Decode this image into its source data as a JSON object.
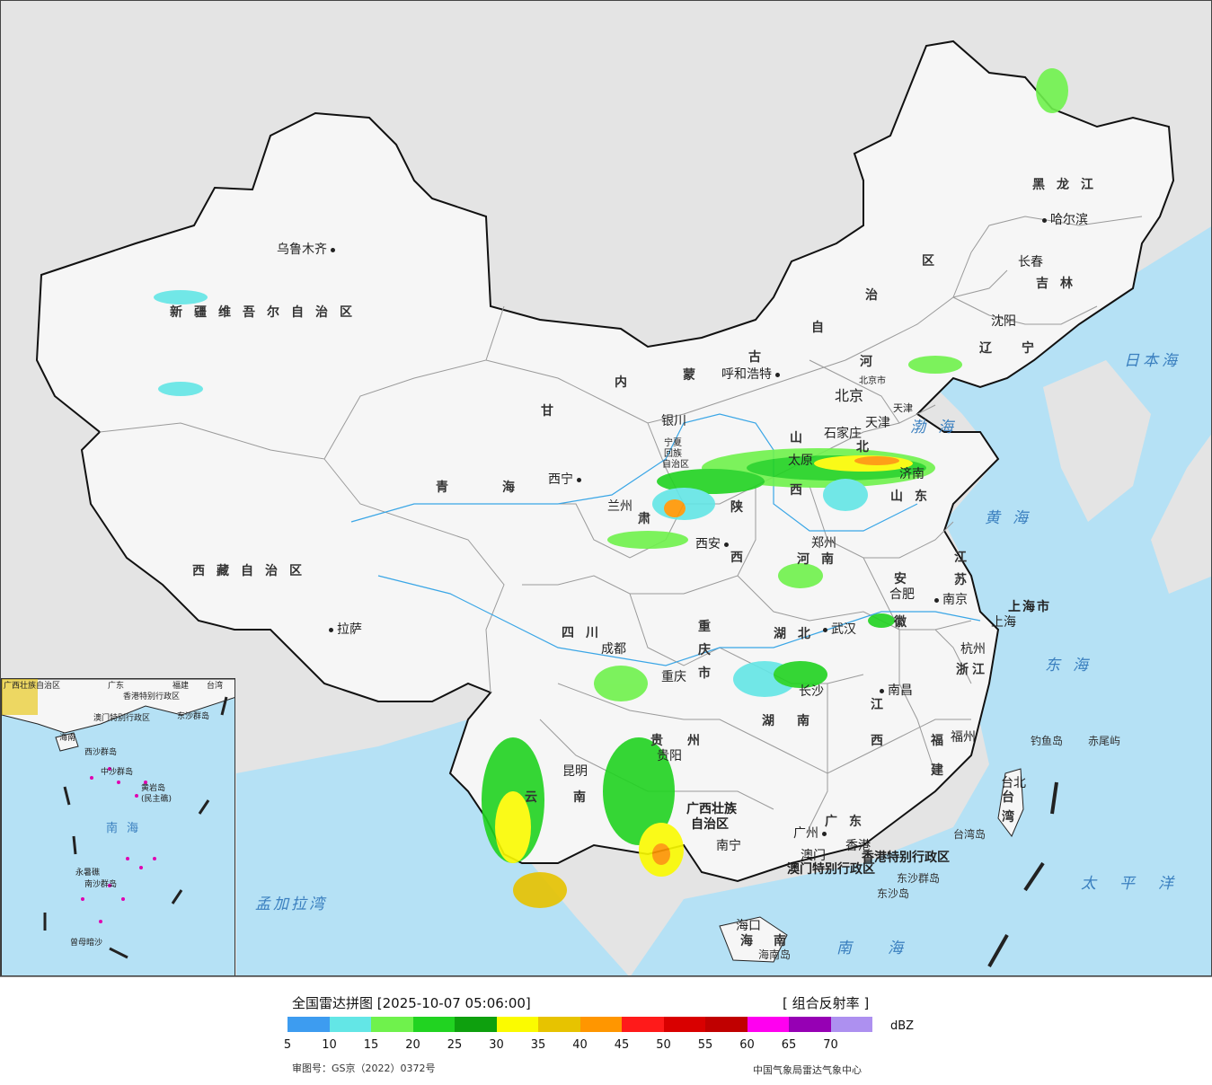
{
  "map": {
    "provinces": {
      "xinjiang": "新疆维吾尔自治区",
      "xizang": "西藏自治区",
      "qinghai_1": "青",
      "qinghai_2": "海",
      "gansu_1": "甘",
      "gansu_2": "肃",
      "neimenggu_nei": "内",
      "neimenggu_meng": "蒙",
      "neimenggu_gu": "古",
      "neimenggu_zi": "自",
      "neimenggu_zhi": "治",
      "neimenggu_qu": "区",
      "heilongjiang": "黑龙江",
      "jilin": "吉林",
      "liaoning_1": "辽",
      "liaoning_2": "宁",
      "hebei_1": "河",
      "hebei_2": "北",
      "shanxi_1": "山",
      "shanxi_2": "西",
      "shandong": "山东",
      "shaanxi_1": "陕",
      "shaanxi_2": "西",
      "henan": "河南",
      "sichuan": "四川",
      "chongqing_1": "重",
      "chongqing_2": "庆",
      "chongqing_3": "市",
      "hubei": "湖北",
      "anhui_1": "安",
      "anhui_2": "徽",
      "jiangsu_1": "江",
      "jiangsu_2": "苏",
      "shanghai_shi": "上海市",
      "zhejiang": "浙江",
      "jiangxi_1": "江",
      "jiangxi_2": "西",
      "hunan_1": "湖",
      "hunan_2": "南",
      "guizhou_1": "贵",
      "guizhou_2": "州",
      "yunnan_1": "云",
      "yunnan_2": "南",
      "guangxi_1": "广西壮族",
      "guangxi_2": "自治区",
      "guangdong": "广东",
      "fujian_1": "福",
      "fujian_2": "建",
      "taiwan_1": "台",
      "taiwan_2": "湾",
      "hainan_1": "海",
      "hainan_2": "南",
      "hongkong": "香港特别行政区",
      "macao": "澳门特别行政区",
      "ningxia_1": "宁夏",
      "ningxia_2": "回族",
      "ningxia_3": "自治区",
      "beijing_shi": "北京市",
      "tianjin_shi": "天津"
    },
    "cities": {
      "urumqi": "乌鲁木齐",
      "lhasa": "拉萨",
      "xining": "西宁",
      "lanzhou": "兰州",
      "yinchuan": "银川",
      "hohhot": "呼和浩特",
      "beijing": "北京",
      "tianjin": "天津",
      "shijiazhuang": "石家庄",
      "taiyuan": "太原",
      "jinan": "济南",
      "zhengzhou": "郑州",
      "xian": "西安",
      "chengdu": "成都",
      "chongqing": "重庆",
      "wuhan": "武汉",
      "hefei": "合肥",
      "nanjing": "南京",
      "shanghai": "上海",
      "hangzhou": "杭州",
      "nanchang": "南昌",
      "changsha": "长沙",
      "guiyang": "贵阳",
      "kunming": "昆明",
      "nanning": "南宁",
      "guangzhou": "广州",
      "hongkong": "香港",
      "macao": "澳门",
      "fuzhou": "福州",
      "taipei": "台北",
      "haikou": "海口",
      "shenyang": "沈阳",
      "changchun": "长春",
      "harbin": "哈尔滨"
    },
    "seas": {
      "bohai": "渤海",
      "huanghai": "黄海",
      "donghai": "东海",
      "nanhai": "南海",
      "ribenhai": "日本海",
      "taipingyang": "太平洋",
      "mengjialawan": "孟加拉湾"
    },
    "islands": {
      "diaoyu": "钓鱼岛",
      "chiwei": "赤尾屿",
      "taiwan_island": "台湾岛",
      "dongsha_qundao": "东沙群岛",
      "dongsha_dao": "东沙岛",
      "hainan_dao": "海南岛"
    },
    "inset": {
      "guangxi": "广西壮族自治区",
      "guangdong": "广东",
      "fujian": "福建",
      "taiwan": "台湾",
      "hongkong": "香港特别行政区",
      "macao": "澳门特别行政区",
      "dongsha": "东沙群岛",
      "hainan": "海南",
      "xisha": "西沙群岛",
      "zhongsha": "中沙群岛",
      "huangyan": "黄岩岛",
      "minzhujiao": "(民主礁)",
      "nanhai": "南海",
      "nansha": "南沙群岛",
      "yongshu": "永暑礁",
      "zengmu": "曾母暗沙"
    }
  },
  "legend": {
    "title": "全国雷达拼图 [2025-10-07 05:06:00]",
    "product": "[ 组合反射率 ]",
    "unit": "dBZ",
    "ticks": [
      "5",
      "10",
      "15",
      "20",
      "25",
      "30",
      "35",
      "40",
      "45",
      "50",
      "55",
      "60",
      "65",
      "70"
    ],
    "colors": [
      "#3d9cf0",
      "#63e6e6",
      "#6ff24c",
      "#21d321",
      "#0ea00e",
      "#fbfb00",
      "#e7c300",
      "#ff9600",
      "#ff1a1a",
      "#d90000",
      "#c00000",
      "#ff00f0",
      "#9600b4",
      "#ad90f0"
    ],
    "approval": "审图号：GS京（2022）0372号",
    "source": "中国气象局雷达气象中心"
  }
}
